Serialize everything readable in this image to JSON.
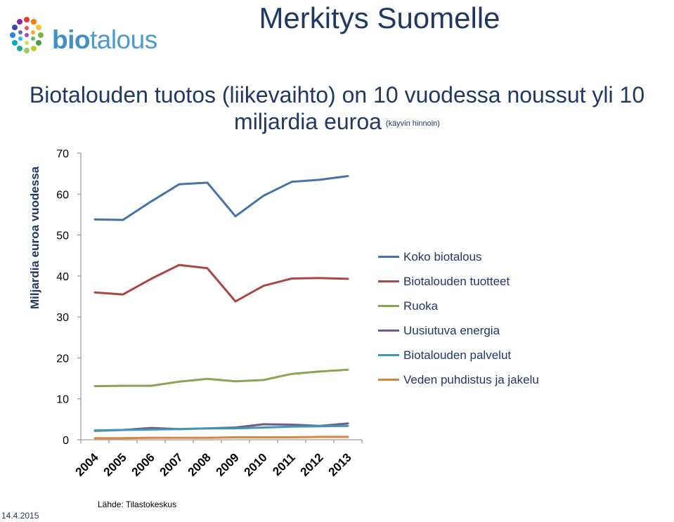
{
  "header": {
    "logo_bio": "bio",
    "logo_talous": "talous",
    "title": "Merkitys Suomelle"
  },
  "subtitle": {
    "line1": "Biotalouden tuotos (liikevaihto) on 10 vuodessa noussut yli 10",
    "line2": "miljardia euroa",
    "note": "(käyvin hinnoin)"
  },
  "footer": {
    "date": "14.4.2015",
    "source": "Lähde: Tilastokeskus"
  },
  "chart_data": {
    "type": "line",
    "ylabel": "Miljardia euroa vuodessa",
    "xlabel": "",
    "ylim": [
      0,
      70
    ],
    "yticks": [
      0,
      10,
      20,
      30,
      40,
      50,
      60,
      70
    ],
    "categories": [
      "2004",
      "2005",
      "2006",
      "2007",
      "2008",
      "2009",
      "2010",
      "2011",
      "2012",
      "2013"
    ],
    "legend_position": "right",
    "grid": false,
    "series": [
      {
        "name": "Koko biotalous",
        "color": "#4572a7",
        "values": [
          53.8,
          53.7,
          58.2,
          62.4,
          62.8,
          54.6,
          59.6,
          63.0,
          63.5,
          64.4
        ]
      },
      {
        "name": "Biotalouden tuotteet",
        "color": "#aa4643",
        "values": [
          36.0,
          35.5,
          39.3,
          42.7,
          41.9,
          33.8,
          37.6,
          39.4,
          39.5,
          39.3
        ]
      },
      {
        "name": "Ruoka",
        "color": "#89a54e",
        "values": [
          13.1,
          13.2,
          13.2,
          14.2,
          14.9,
          14.3,
          14.6,
          16.1,
          16.7,
          17.1
        ]
      },
      {
        "name": "Uusiutuva energia",
        "color": "#71588f",
        "values": [
          2.2,
          2.4,
          2.9,
          2.6,
          2.8,
          3.0,
          3.8,
          3.7,
          3.4,
          4.0
        ]
      },
      {
        "name": "Biotalouden palvelut",
        "color": "#4198af",
        "values": [
          2.3,
          2.4,
          2.5,
          2.6,
          2.8,
          2.8,
          3.0,
          3.2,
          3.3,
          3.4
        ]
      },
      {
        "name": "Veden puhdistus ja jakelu",
        "color": "#db843d",
        "values": [
          0.4,
          0.4,
          0.5,
          0.5,
          0.5,
          0.6,
          0.6,
          0.6,
          0.7,
          0.7
        ]
      }
    ]
  }
}
